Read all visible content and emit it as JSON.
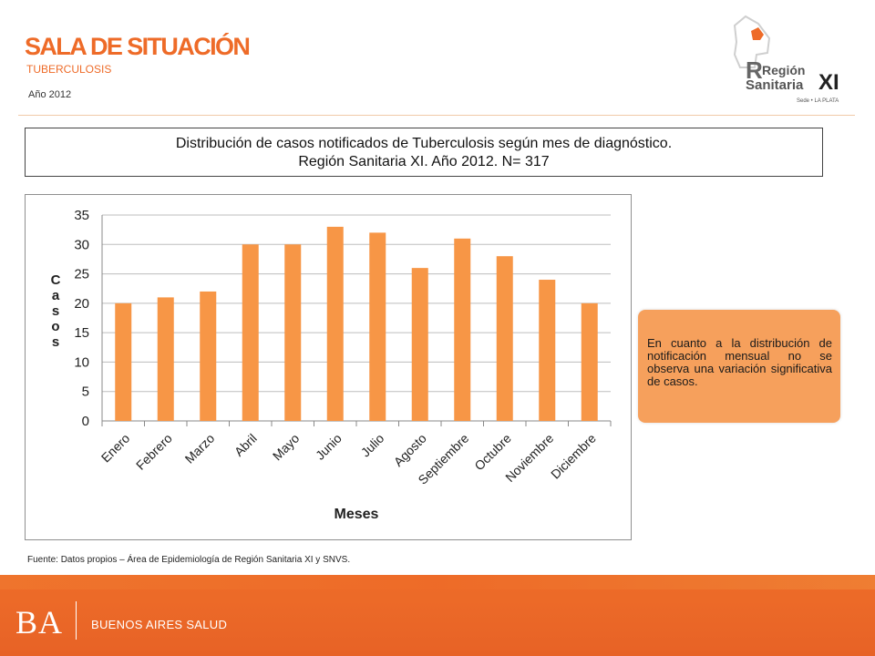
{
  "header": {
    "title": "SALA DE SITUACIÓN",
    "subtitle": "TUBERCULOSIS",
    "year": "Año 2012"
  },
  "logo": {
    "line1": "Región",
    "line2": "Sanitaria",
    "numeral": "XI",
    "tagline": "Sede • LA PLATA",
    "icon": "province-map-icon"
  },
  "chart_title": {
    "line1": "Distribución de casos notificados de Tuberculosis según mes de diagnóstico.",
    "line2": "Región Sanitaria XI. Año 2012. N= 317"
  },
  "chart_data": {
    "type": "bar",
    "categories": [
      "Enero",
      "Febrero",
      "Marzo",
      "Abril",
      "Mayo",
      "Junio",
      "Julio",
      "Agosto",
      "Septiembre",
      "Octubre",
      "Noviembre",
      "Diciembre"
    ],
    "values": [
      20,
      21,
      22,
      30,
      30,
      33,
      32,
      26,
      31,
      28,
      24,
      20
    ],
    "ylim": [
      0,
      35
    ],
    "yticks": [
      0,
      5,
      10,
      15,
      20,
      25,
      30,
      35
    ],
    "xlabel": "Meses",
    "ylabel": "Casos",
    "grid": true,
    "bar_color": "#f79646"
  },
  "note": "En cuanto a la distribución de notificación mensual no se observa una variación significativa de casos.",
  "source": "Fuente: Datos propios – Área de Epidemiología de Región Sanitaria XI y SNVS.",
  "footer": {
    "mark": "BA",
    "label": "BUENOS AIRES SALUD"
  }
}
